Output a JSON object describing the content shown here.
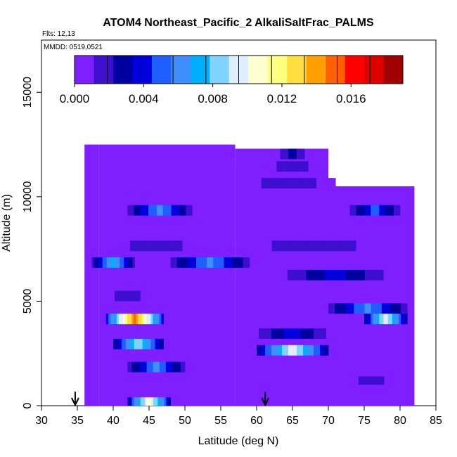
{
  "chart_data": {
    "type": "heatmap",
    "title": "ATOM4 Northeast_Pacific_2 AlkaliSaltFrac_PALMS",
    "flights_text": "Flts: 12,13",
    "dates_text": "MMDD: 0519,0521",
    "xlabel": "Latitude (deg N)",
    "ylabel": "Altitude (m)",
    "xlim": [
      30,
      85
    ],
    "ylim": [
      0,
      17500
    ],
    "x_ticks": [
      30,
      35,
      40,
      45,
      50,
      55,
      60,
      65,
      70,
      75,
      80,
      85
    ],
    "y_ticks": [
      0,
      5000,
      10000,
      15000
    ],
    "colorbar": {
      "range": [
        0,
        0.019
      ],
      "tick_values": [
        0.0,
        0.004,
        0.008,
        0.012,
        0.016
      ],
      "tick_labels": [
        "0.000",
        "0.004",
        "0.008",
        "0.012",
        "0.016"
      ],
      "colors": [
        "#7f1fff",
        "#3f0fcf",
        "#00009f",
        "#0000df",
        "#1f5fff",
        "#3f8fff",
        "#00b0ff",
        "#7fd5ff",
        "#dfefff",
        "#ffffd0",
        "#ffff7f",
        "#ffdf3f",
        "#ffa000",
        "#ff6000",
        "#ff0000",
        "#df0000",
        "#a00000"
      ]
    },
    "arrows_latitude": [
      34.7,
      61.2
    ],
    "columns": [
      {
        "lat0": 36,
        "lat1": 38,
        "alt": [
          0,
          12500
        ]
      },
      {
        "lat0": 38,
        "lat1": 57,
        "alt": [
          0,
          12500
        ]
      },
      {
        "lat0": 57,
        "lat1": 70,
        "alt": [
          0,
          12300
        ]
      },
      {
        "lat0": 70,
        "lat1": 82,
        "alt": [
          0,
          10500
        ]
      }
    ],
    "bands": [
      {
        "alt0": 11800,
        "alt1": 12300,
        "lat0": 63,
        "lat1": 67,
        "value": 0.003
      },
      {
        "alt0": 11200,
        "alt1": 11700,
        "lat0": 61,
        "lat1": 69,
        "value": 0.002
      },
      {
        "alt0": 10400,
        "alt1": 10900,
        "lat0": 58,
        "lat1": 71,
        "value": 0.002
      },
      {
        "alt0": 9800,
        "alt1": 10300,
        "lat0": 42,
        "lat1": 46,
        "value": 0.001
      },
      {
        "alt0": 9100,
        "alt1": 9600,
        "lat0": 42,
        "lat1": 51,
        "value": 0.006
      },
      {
        "alt0": 9100,
        "alt1": 9600,
        "lat0": 73,
        "lat1": 80,
        "value": 0.005
      },
      {
        "alt0": 7400,
        "alt1": 7900,
        "lat0": 40,
        "lat1": 52,
        "value": 0.002
      },
      {
        "alt0": 7400,
        "alt1": 7900,
        "lat0": 58,
        "lat1": 78,
        "value": 0.002
      },
      {
        "alt0": 6600,
        "alt1": 7100,
        "lat0": 37,
        "lat1": 43,
        "value": 0.007
      },
      {
        "alt0": 6600,
        "alt1": 7100,
        "lat0": 48,
        "lat1": 59,
        "value": 0.006
      },
      {
        "alt0": 6000,
        "alt1": 6500,
        "lat0": 64,
        "lat1": 78,
        "value": 0.004
      },
      {
        "alt0": 5000,
        "alt1": 5500,
        "lat0": 39,
        "lat1": 45,
        "value": 0.002
      },
      {
        "alt0": 4400,
        "alt1": 4900,
        "lat0": 70,
        "lat1": 81,
        "value": 0.006
      },
      {
        "alt0": 3900,
        "alt1": 4400,
        "lat0": 39,
        "lat1": 47,
        "value": 0.015
      },
      {
        "alt0": 3900,
        "alt1": 4400,
        "lat0": 75,
        "lat1": 81,
        "value": 0.01
      },
      {
        "alt0": 3200,
        "alt1": 3700,
        "lat0": 60,
        "lat1": 70,
        "value": 0.004
      },
      {
        "alt0": 2700,
        "alt1": 3200,
        "lat0": 40,
        "lat1": 47,
        "value": 0.009
      },
      {
        "alt0": 2400,
        "alt1": 2900,
        "lat0": 60,
        "lat1": 70,
        "value": 0.01
      },
      {
        "alt0": 1600,
        "alt1": 2100,
        "lat0": 42,
        "lat1": 50,
        "value": 0.006
      },
      {
        "alt0": 1000,
        "alt1": 1400,
        "lat0": 73,
        "lat1": 79,
        "value": 0.002
      },
      {
        "alt0": 0,
        "alt1": 400,
        "lat0": 42,
        "lat1": 48,
        "value": 0.011
      }
    ]
  }
}
